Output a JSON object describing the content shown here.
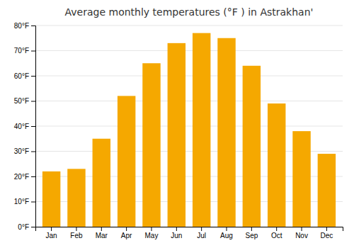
{
  "chart_data": {
    "type": "bar",
    "title": "Average monthly temperatures (°F ) in Astrakhan'",
    "categories": [
      "Jan",
      "Feb",
      "Mar",
      "Apr",
      "May",
      "Jun",
      "Jul",
      "Aug",
      "Sep",
      "Oct",
      "Nov",
      "Dec"
    ],
    "values": [
      22,
      23,
      35,
      52,
      65,
      73,
      77,
      75,
      64,
      49,
      38,
      29
    ],
    "color": "#F5A800",
    "ylim": [
      0,
      80
    ],
    "yticks": [
      {
        "value": 0,
        "label": "0°F"
      },
      {
        "value": 10,
        "label": "10°F"
      },
      {
        "value": 20,
        "label": "20°F"
      },
      {
        "value": 30,
        "label": "30°F"
      },
      {
        "value": 40,
        "label": "40°F"
      },
      {
        "value": 50,
        "label": "50°F"
      },
      {
        "value": 60,
        "label": "60°F"
      },
      {
        "value": 70,
        "label": "70°F"
      },
      {
        "value": 80,
        "label": "80°F"
      }
    ],
    "grid": true
  }
}
